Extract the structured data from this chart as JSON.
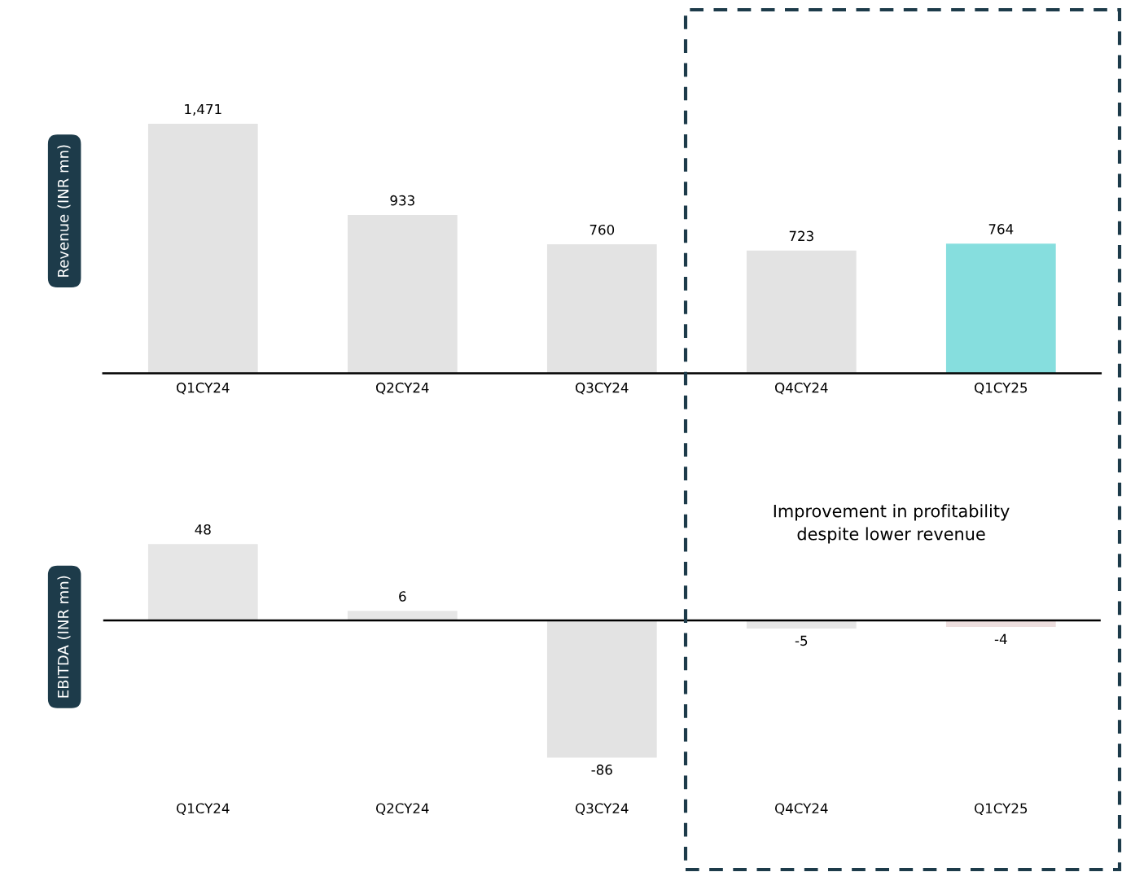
{
  "chart_data": [
    {
      "type": "bar",
      "ylabel": "Revenue (INR mn)",
      "categories": [
        "Q1CY24",
        "Q2CY24",
        "Q3CY24",
        "Q4CY24",
        "Q1CY25"
      ],
      "values": [
        1471,
        933,
        760,
        723,
        764
      ],
      "value_labels": [
        "1,471",
        "933",
        "760",
        "723",
        "764"
      ],
      "colors": [
        "#e3e3e3",
        "#e3e3e3",
        "#e3e3e3",
        "#e3e3e3",
        "#86dede"
      ],
      "tick_labels": "x",
      "grid": false,
      "legend": false
    },
    {
      "type": "bar",
      "ylabel": "EBITDA (INR mn)",
      "categories": [
        "Q1CY24",
        "Q2CY24",
        "Q3CY24",
        "Q4CY24",
        "Q1CY25"
      ],
      "values": [
        48,
        6,
        -86,
        -5,
        -4
      ],
      "data_labels": true,
      "colors": [
        "#e6e6e6",
        "#e6e6e6",
        "#e3e3e3",
        "#e6e6e6",
        "#eddede"
      ],
      "tick_labels": "x",
      "grid": false,
      "legend": false,
      "annotations": [
        "Improvement in profitability\ndespite lower revenue"
      ]
    }
  ]
}
